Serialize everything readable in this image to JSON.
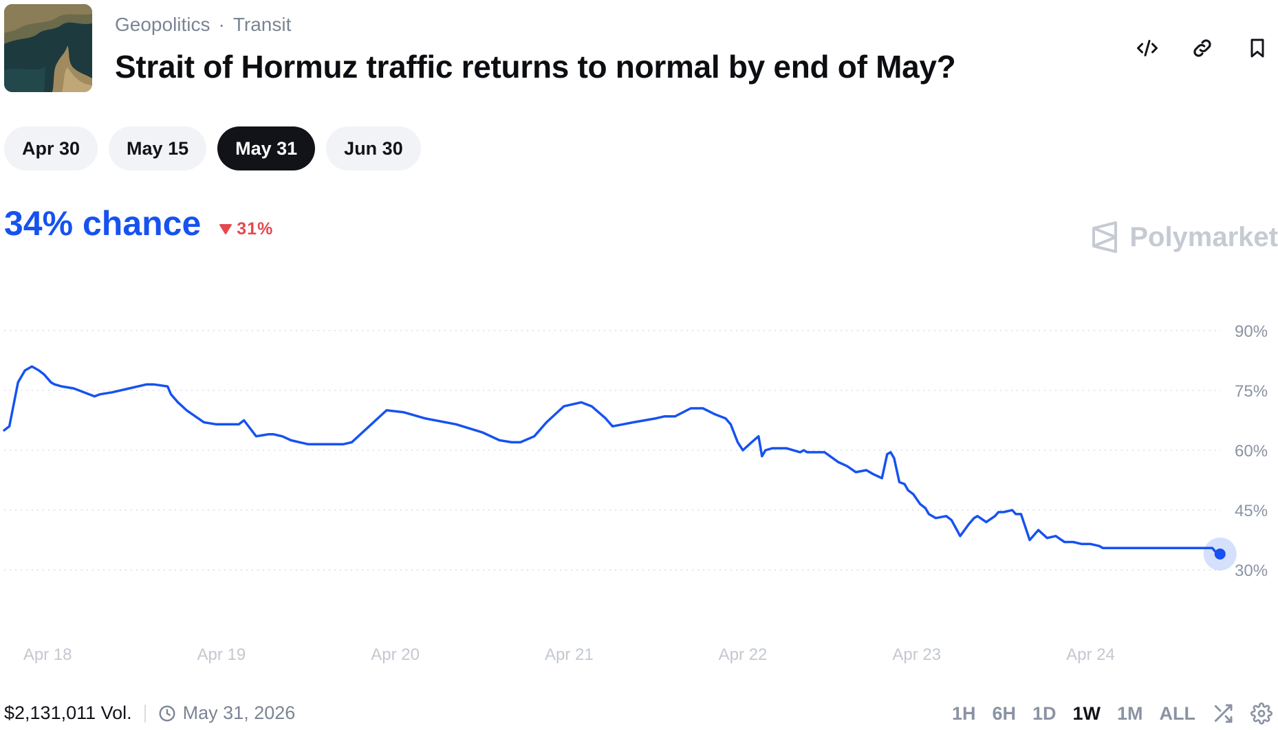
{
  "header": {
    "category": "Geopolitics",
    "subcategory": "Transit",
    "separator": "·",
    "title": "Strait of Hormuz traffic returns to normal by end of May?",
    "actions": [
      "embed-icon",
      "link-icon",
      "bookmark-icon"
    ]
  },
  "date_tabs": [
    {
      "label": "Apr 30",
      "active": false
    },
    {
      "label": "May 15",
      "active": false
    },
    {
      "label": "May 31",
      "active": true
    },
    {
      "label": "Jun 30",
      "active": false
    }
  ],
  "summary": {
    "chance": "34% chance",
    "delta": "31%",
    "delta_direction": "down"
  },
  "brand": "Polymarket",
  "colors": {
    "accent": "#1652f0",
    "negative": "#e5484d",
    "muted": "#7b8494"
  },
  "chart_data": {
    "type": "line",
    "ylim": [
      24,
      96
    ],
    "y_ticks": [
      "90%",
      "75%",
      "60%",
      "45%",
      "30%"
    ],
    "y_tick_values": [
      90,
      75,
      60,
      45,
      30
    ],
    "x_ticks": [
      "Apr 18",
      "Apr 19",
      "Apr 20",
      "Apr 21",
      "Apr 22",
      "Apr 23",
      "Apr 24"
    ],
    "x_tick_positions": [
      0.25,
      1.25,
      2.25,
      3.25,
      4.25,
      5.25,
      6.25
    ],
    "grid": true,
    "series": [
      {
        "x": [
          0,
          0.03,
          0.08,
          0.12,
          0.16,
          0.2,
          0.23,
          0.27,
          0.29,
          0.33,
          0.4,
          0.52,
          0.55,
          0.62,
          0.72,
          0.82,
          0.86,
          0.94,
          0.96,
          1.0,
          1.05,
          1.15,
          1.22,
          1.35,
          1.38,
          1.45,
          1.52,
          1.55,
          1.6,
          1.65,
          1.7,
          1.75,
          1.85,
          1.95,
          2.0,
          2.1,
          2.2,
          2.3,
          2.42,
          2.6,
          2.75,
          2.85,
          2.92,
          2.97,
          3.05,
          3.12,
          3.22,
          3.32,
          3.38,
          3.46,
          3.5,
          3.56,
          3.62,
          3.75,
          3.8,
          3.86,
          3.95,
          4.02,
          4.09,
          4.12,
          4.15,
          4.18,
          4.22,
          4.25,
          4.3,
          4.34,
          4.36,
          4.38,
          4.42,
          4.5,
          4.58,
          4.6,
          4.62,
          4.65,
          4.72,
          4.8,
          4.85,
          4.9,
          4.96,
          5.0,
          5.05,
          5.08,
          5.1,
          5.12,
          5.15,
          5.18,
          5.2,
          5.23,
          5.27,
          5.3,
          5.32,
          5.36,
          5.42,
          5.45,
          5.5,
          5.55,
          5.58,
          5.6,
          5.65,
          5.7,
          5.72,
          5.75,
          5.8,
          5.82,
          5.85,
          5.9,
          5.95,
          6.0,
          6.05,
          6.1,
          6.15,
          6.2,
          6.25,
          6.3,
          6.32,
          6.35,
          6.4,
          6.45,
          6.47,
          6.52,
          6.58,
          6.65,
          6.7,
          6.75,
          6.85,
          6.95,
          6.97,
          7.0
        ],
        "y": [
          65,
          66,
          77,
          80,
          81,
          80,
          79,
          77,
          76.5,
          76,
          75.5,
          73.5,
          74,
          74.5,
          75.5,
          76.5,
          76.5,
          76,
          74,
          72,
          70,
          67,
          66.5,
          66.5,
          67.5,
          63.5,
          64,
          64,
          63.5,
          62.5,
          62,
          61.5,
          61.5,
          61.5,
          62,
          66,
          70,
          69.5,
          68,
          66.5,
          64.5,
          62.5,
          62,
          62,
          63.5,
          67,
          71,
          72,
          71,
          68,
          66,
          66.5,
          67,
          68,
          68.5,
          68.5,
          70.5,
          70.5,
          69,
          68.5,
          68,
          66.5,
          62,
          60,
          62,
          63.5,
          58.5,
          60,
          60.5,
          60.5,
          59.5,
          60,
          59.5,
          59.5,
          59.5,
          57,
          56,
          54.5,
          55,
          54,
          53,
          59,
          59.5,
          58,
          52,
          51.5,
          50,
          49,
          46.5,
          45.5,
          44,
          43,
          43.5,
          42.5,
          38.5,
          41.5,
          43,
          43.5,
          42,
          43.5,
          44.5,
          44.5,
          45,
          44,
          44,
          37.5,
          40,
          38,
          38.5,
          37,
          37,
          36.5,
          36.5,
          36,
          35.5,
          35.5,
          35.5,
          35.5,
          35.5,
          35.5,
          35.5,
          35.5,
          35.5,
          35.5,
          35.5,
          35.5,
          34.5,
          34
        ]
      }
    ],
    "current_value": 34
  },
  "footer": {
    "volume": "$2,131,011 Vol.",
    "end_date": "May 31, 2026",
    "ranges": [
      {
        "label": "1H",
        "active": false
      },
      {
        "label": "6H",
        "active": false
      },
      {
        "label": "1D",
        "active": false
      },
      {
        "label": "1W",
        "active": true
      },
      {
        "label": "1M",
        "active": false
      },
      {
        "label": "ALL",
        "active": false
      }
    ]
  }
}
